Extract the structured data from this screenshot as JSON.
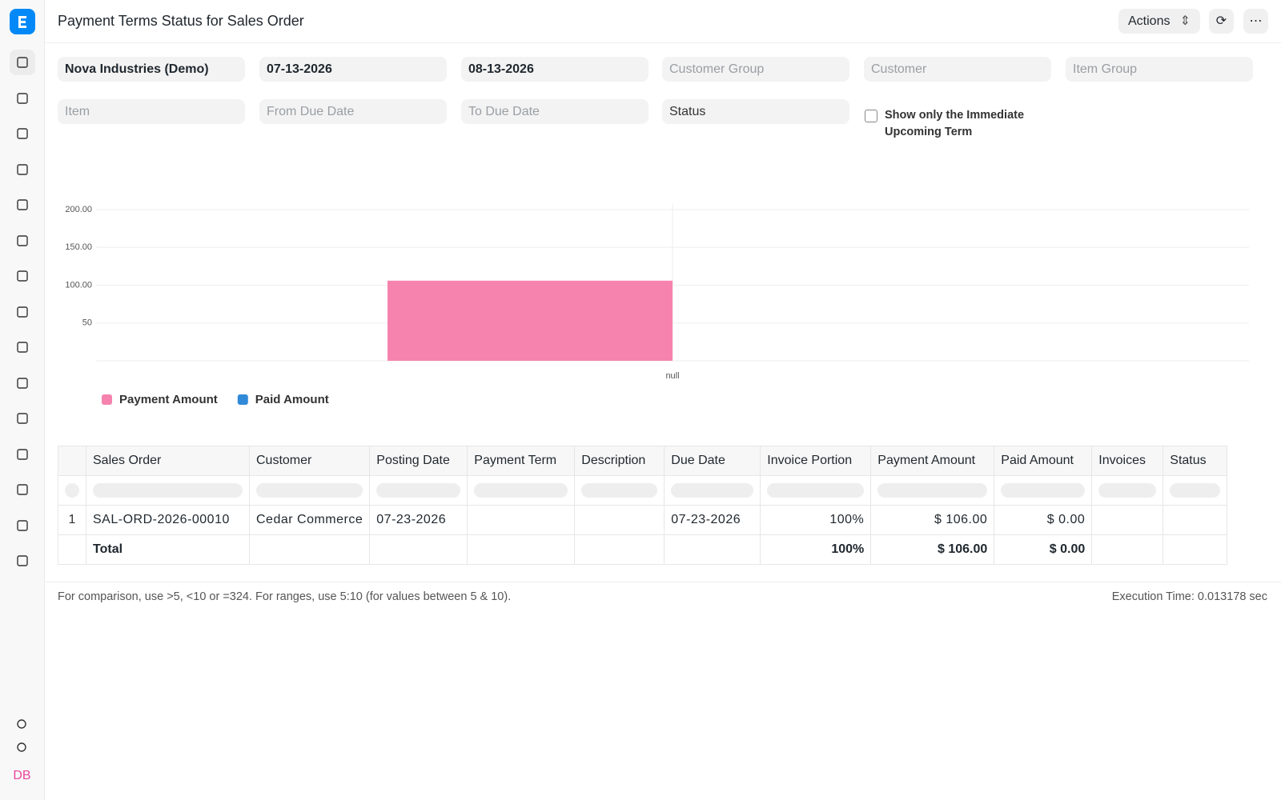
{
  "header": {
    "title": "Payment Terms Status for Sales Order",
    "actions": "Actions"
  },
  "sidebar": {
    "avatar": "DB"
  },
  "filters": {
    "fields": [
      {
        "text": "Nova Industries (Demo)",
        "filled": true
      },
      {
        "text": "07-13-2026",
        "filled": true
      },
      {
        "text": "08-13-2026",
        "filled": true
      },
      {
        "text": "Customer Group",
        "filled": false
      },
      {
        "text": "Customer",
        "filled": false
      },
      {
        "text": "Item Group",
        "filled": false
      },
      {
        "text": "Item",
        "filled": false
      },
      {
        "text": "From Due Date",
        "filled": false
      },
      {
        "text": "To Due Date",
        "filled": false
      },
      {
        "text": "Status",
        "filled": true
      }
    ],
    "checkbox_label": "Show only the Immediate Upcoming Term"
  },
  "chart_data": {
    "type": "bar",
    "categories": [
      "null"
    ],
    "series": [
      {
        "name": "Payment Amount",
        "color": "#f683ae",
        "values": [
          106
        ]
      },
      {
        "name": "Paid Amount",
        "color": "#318ad8",
        "values": [
          0
        ]
      }
    ],
    "ylim": [
      0,
      200
    ],
    "yticks": [
      50,
      {
        "value": 100,
        "label": "100.00"
      },
      {
        "value": 150,
        "label": "150.00"
      },
      {
        "value": 200,
        "label": "200.00"
      }
    ],
    "grid": true
  },
  "table": {
    "columns": [
      "Sales Order",
      "Customer",
      "Posting Date",
      "Payment Term",
      "Description",
      "Due Date",
      "Invoice Portion",
      "Payment Amount",
      "Paid Amount",
      "Invoices",
      "Status"
    ],
    "rows": [
      {
        "index": 1,
        "cells": {
          "0": "SAL-ORD-2026-00010",
          "1": "Cedar Commerce",
          "2": "07-23-2026",
          "5": "07-23-2026",
          "6": "100%",
          "7": "$ 106.00",
          "8": "$ 0.00"
        }
      }
    ],
    "total": {
      "label": "Total",
      "cells": {
        "6": "100%",
        "7": "$ 106.00",
        "8": "$ 0.00"
      }
    }
  },
  "footer": {
    "hint": "For comparison, use >5, <10 or =324. For ranges, use 5:10 (for values between 5 & 10).",
    "execution_time": "Execution Time: 0.013178 sec"
  }
}
